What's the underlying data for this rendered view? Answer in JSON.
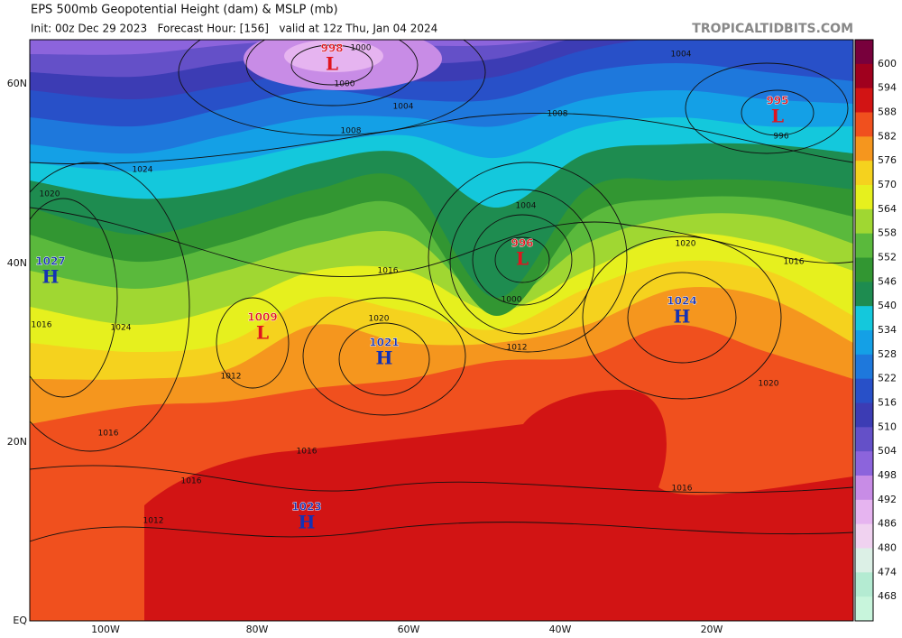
{
  "header": {
    "title": "EPS 500mb Geopotential Height (dam) & MSLP (mb)",
    "subtitle": "Init: 00z Dec 29 2023   Forecast Hour: [156]   valid at 12z Thu, Jan 04 2024",
    "site": "TROPICALTIDBITS.COM"
  },
  "axes": {
    "lat_labels": [
      "60N",
      "40N",
      "20N",
      "EQ"
    ],
    "lon_labels": [
      "100W",
      "80W",
      "60W",
      "40W",
      "20W"
    ]
  },
  "colorbar": {
    "labels": [
      600,
      594,
      588,
      582,
      576,
      570,
      564,
      558,
      552,
      546,
      540,
      534,
      528,
      522,
      516,
      510,
      504,
      498,
      492,
      486,
      480,
      474,
      468
    ],
    "colors": [
      "#78003c",
      "#a0001e",
      "#d21414",
      "#f0501e",
      "#f5961e",
      "#f5d21e",
      "#e6f01e",
      "#a0d732",
      "#5ab93c",
      "#329632",
      "#1e8c50",
      "#14c8dc",
      "#14a0e6",
      "#1e78dc",
      "#2850c8",
      "#3c3cb4",
      "#6450c8",
      "#8c64dc",
      "#c88ce6",
      "#e6b4f0",
      "#f0d2f0",
      "#dcf0e6",
      "#b4ebd2",
      "#c8f5dc"
    ]
  },
  "centers": [
    {
      "letter": "L",
      "value": 998
    },
    {
      "letter": "L",
      "value": 995
    },
    {
      "letter": "L",
      "value": 996
    },
    {
      "letter": "L",
      "value": 1009
    },
    {
      "letter": "H",
      "value": 1027
    },
    {
      "letter": "H",
      "value": 1024
    },
    {
      "letter": "H",
      "value": 1021
    },
    {
      "letter": "H",
      "value": 1023
    }
  ],
  "contour_labels": [
    1000,
    1004,
    1000,
    1008,
    1004,
    1008,
    996,
    1004,
    1000,
    1012,
    1016,
    1020,
    1020,
    1016,
    1020,
    1016,
    1012,
    1016,
    1016,
    1012,
    1024,
    1020,
    1024,
    1016,
    1016
  ]
}
